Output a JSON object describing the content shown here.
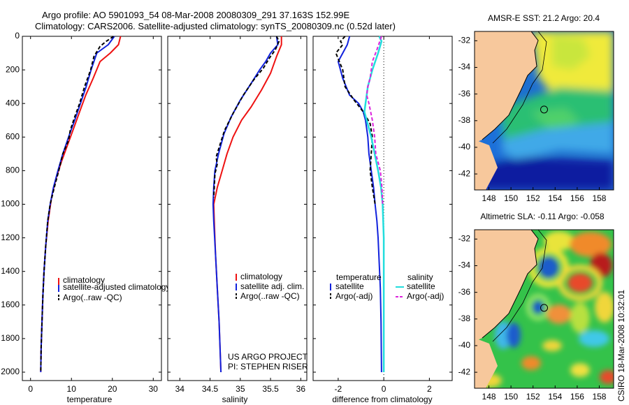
{
  "header": {
    "title_line1": "Argo profile: AO 5901093_54 08-Mar-2008 20080309_291 37.163S 152.99E",
    "title_line2": "Climatology: CARS2006. Satellite-adjusted climatology: synTS_20080309.nc (0.52d later)"
  },
  "credit": "CSIRO 18-Mar-2008 10:32:01",
  "project": {
    "line1": "US ARGO PROJECT",
    "line2": "PI: STEPHEN RISER"
  },
  "colors": {
    "climatology": "#ee1111",
    "satellite": "#1122dd",
    "argo": "#000000",
    "salinity_satellite": "#22dddd",
    "salinity_argo": "#dd22dd",
    "land": "#f7c89c"
  },
  "chart_data": [
    {
      "type": "line",
      "id": "temperature",
      "xlabel": "temperature",
      "ylabel": "",
      "xlim": [
        -2,
        32
      ],
      "ylim": [
        2050,
        0
      ],
      "xticks": [
        0,
        10,
        20,
        30
      ],
      "yticks": [
        0,
        200,
        400,
        600,
        800,
        1000,
        1200,
        1400,
        1600,
        1800,
        2000
      ],
      "legend": [
        "climatology",
        "satellite-adjusted climatology",
        "Argo(..raw -QC)"
      ],
      "series": [
        {
          "name": "climatology",
          "style": "climatology",
          "points": [
            [
              22,
              0
            ],
            [
              21.5,
              50
            ],
            [
              19.5,
              100
            ],
            [
              17,
              150
            ],
            [
              15.3,
              250
            ],
            [
              13.5,
              350
            ],
            [
              12,
              450
            ],
            [
              10.5,
              550
            ],
            [
              9,
              650
            ],
            [
              7.5,
              750
            ],
            [
              6.2,
              850
            ],
            [
              5.2,
              950
            ],
            [
              4.3,
              1100
            ],
            [
              3.7,
              1250
            ],
            [
              3.3,
              1400
            ],
            [
              3,
              1550
            ],
            [
              2.8,
              1700
            ],
            [
              2.6,
              1850
            ],
            [
              2.5,
              2000
            ]
          ]
        },
        {
          "name": "satellite-adjusted climatology",
          "style": "satellite",
          "points": [
            [
              20.5,
              0
            ],
            [
              19,
              50
            ],
            [
              16.2,
              100
            ],
            [
              14.8,
              200
            ],
            [
              13.6,
              300
            ],
            [
              12.2,
              400
            ],
            [
              10.8,
              500
            ],
            [
              9.3,
              600
            ],
            [
              7.9,
              700
            ],
            [
              6.7,
              800
            ],
            [
              5.6,
              900
            ],
            [
              4.8,
              1000
            ],
            [
              4.2,
              1100
            ],
            [
              3.7,
              1250
            ],
            [
              3.3,
              1400
            ],
            [
              3,
              1550
            ],
            [
              2.8,
              1700
            ],
            [
              2.6,
              1850
            ],
            [
              2.5,
              2000
            ]
          ]
        },
        {
          "name": "Argo(..raw -QC)",
          "style": "argo",
          "points": [
            [
              20.3,
              0
            ],
            [
              18.5,
              30
            ],
            [
              17,
              60
            ],
            [
              15.5,
              120
            ],
            [
              14.7,
              200
            ],
            [
              13.2,
              300
            ],
            [
              12,
              400
            ],
            [
              10.8,
              480
            ],
            [
              9.7,
              560
            ],
            [
              9.3,
              620
            ],
            [
              7.9,
              700
            ],
            [
              6.9,
              800
            ],
            [
              5.8,
              900
            ],
            [
              4.8,
              1000
            ],
            [
              4.2,
              1100
            ],
            [
              3.7,
              1250
            ],
            [
              3.3,
              1400
            ],
            [
              3,
              1550
            ],
            [
              2.8,
              1700
            ],
            [
              2.6,
              1850
            ],
            [
              2.5,
              2000
            ]
          ]
        }
      ]
    },
    {
      "type": "line",
      "id": "salinity",
      "xlabel": "salinity",
      "ylabel": "",
      "xlim": [
        33.8,
        36.1
      ],
      "ylim": [
        2050,
        0
      ],
      "xticks": [
        34,
        34.5,
        35,
        35.5,
        36
      ],
      "yticks": [
        0,
        200,
        400,
        600,
        800,
        1000,
        1200,
        1400,
        1600,
        1800,
        2000
      ],
      "legend": [
        "climatology",
        "satellite adj. clim.",
        "Argo(..raw -QC)"
      ],
      "series": [
        {
          "name": "climatology",
          "style": "climatology",
          "points": [
            [
              35.68,
              0
            ],
            [
              35.68,
              50
            ],
            [
              35.6,
              120
            ],
            [
              35.5,
              220
            ],
            [
              35.35,
              320
            ],
            [
              35.18,
              420
            ],
            [
              35.02,
              500
            ],
            [
              34.88,
              600
            ],
            [
              34.78,
              700
            ],
            [
              34.7,
              800
            ],
            [
              34.62,
              900
            ],
            [
              34.56,
              1000
            ],
            [
              34.57,
              1100
            ],
            [
              34.59,
              1300
            ],
            [
              34.62,
              1500
            ],
            [
              34.65,
              1700
            ],
            [
              34.68,
              2000
            ]
          ]
        },
        {
          "name": "satellite adj. clim.",
          "style": "satellite",
          "points": [
            [
              35.6,
              0
            ],
            [
              35.62,
              50
            ],
            [
              35.5,
              100
            ],
            [
              35.42,
              150
            ],
            [
              35.32,
              200
            ],
            [
              35.18,
              280
            ],
            [
              35,
              380
            ],
            [
              34.85,
              480
            ],
            [
              34.73,
              580
            ],
            [
              34.64,
              700
            ],
            [
              34.58,
              800
            ],
            [
              34.56,
              900
            ],
            [
              34.55,
              1000
            ],
            [
              34.56,
              1100
            ],
            [
              34.59,
              1300
            ],
            [
              34.62,
              1500
            ],
            [
              34.65,
              1700
            ],
            [
              34.68,
              2000
            ]
          ]
        },
        {
          "name": "Argo(..raw -QC)",
          "style": "argo",
          "points": [
            [
              35.6,
              0
            ],
            [
              35.64,
              30
            ],
            [
              35.58,
              80
            ],
            [
              35.48,
              130
            ],
            [
              35.38,
              190
            ],
            [
              35.22,
              260
            ],
            [
              35.05,
              350
            ],
            [
              34.88,
              460
            ],
            [
              34.74,
              560
            ],
            [
              34.66,
              650
            ],
            [
              34.6,
              720
            ],
            [
              34.62,
              760
            ],
            [
              34.58,
              820
            ],
            [
              34.57,
              900
            ],
            [
              34.56,
              960
            ]
          ]
        }
      ]
    },
    {
      "type": "line",
      "id": "difference",
      "xlabel": "difference from climatology",
      "ylabel": "",
      "xlim": [
        -3.1,
        3.0
      ],
      "ylim": [
        2050,
        0
      ],
      "xticks": [
        -2,
        0,
        2
      ],
      "yticks": [
        0,
        200,
        400,
        600,
        800,
        1000,
        1200,
        1400,
        1600,
        1800,
        2000
      ],
      "legend_left_title": "temperature",
      "legend_right_title": "salinity",
      "legend": [
        "satellite",
        "Argo(-adj)",
        "satellite",
        "Argo(-adj)"
      ],
      "series": [
        {
          "name": "temperature satellite",
          "style": "satellite",
          "points": [
            [
              -1.5,
              0
            ],
            [
              -1.6,
              50
            ],
            [
              -2.0,
              150
            ],
            [
              -1.8,
              250
            ],
            [
              -1.5,
              350
            ],
            [
              -1.1,
              400
            ],
            [
              -0.9,
              450
            ],
            [
              -0.8,
              500
            ],
            [
              -0.7,
              600
            ],
            [
              -0.65,
              700
            ],
            [
              -0.55,
              800
            ],
            [
              -0.45,
              900
            ],
            [
              -0.38,
              1000
            ],
            [
              -0.3,
              1100
            ],
            [
              -0.25,
              1200
            ],
            [
              -0.2,
              1350
            ],
            [
              -0.15,
              1500
            ],
            [
              -0.12,
              1700
            ],
            [
              -0.1,
              2000
            ]
          ]
        },
        {
          "name": "temperature Argo(-adj)",
          "style": "argo",
          "points": [
            [
              -1.7,
              0
            ],
            [
              -1.9,
              30
            ],
            [
              -1.8,
              50
            ],
            [
              -2.1,
              100
            ],
            [
              -1.8,
              200
            ],
            [
              -1.7,
              300
            ],
            [
              -1.3,
              380
            ],
            [
              -0.9,
              450
            ],
            [
              -0.6,
              520
            ],
            [
              -0.5,
              600
            ],
            [
              -0.55,
              700
            ],
            [
              -0.6,
              800
            ],
            [
              -0.5,
              900
            ],
            [
              -0.38,
              1000
            ]
          ]
        },
        {
          "name": "salinity satellite",
          "style": "salinity_satellite",
          "points": [
            [
              -0.2,
              0
            ],
            [
              -0.1,
              30
            ],
            [
              -0.25,
              100
            ],
            [
              -0.5,
              200
            ],
            [
              -0.7,
              300
            ],
            [
              -0.8,
              400
            ],
            [
              -0.85,
              450
            ],
            [
              -0.75,
              500
            ],
            [
              -0.55,
              600
            ],
            [
              -0.4,
              700
            ],
            [
              -0.25,
              800
            ],
            [
              -0.12,
              900
            ],
            [
              -0.05,
              1000
            ],
            [
              0,
              1200
            ],
            [
              0,
              1500
            ],
            [
              0,
              2000
            ]
          ]
        },
        {
          "name": "salinity Argo(-adj)",
          "style": "salinity_argo",
          "points": [
            [
              -0.1,
              0
            ],
            [
              -0.3,
              80
            ],
            [
              -0.5,
              150
            ],
            [
              -0.6,
              250
            ],
            [
              -0.7,
              300
            ],
            [
              -0.75,
              350
            ],
            [
              -0.65,
              400
            ],
            [
              -0.5,
              500
            ],
            [
              -0.4,
              600
            ],
            [
              -0.35,
              700
            ],
            [
              -0.15,
              800
            ],
            [
              -0.08,
              900
            ],
            [
              -0.05,
              1000
            ]
          ]
        }
      ]
    },
    {
      "type": "heatmap",
      "id": "sst-map",
      "title": "AMSR-E SST: 21.2  Argo: 20.4",
      "xlim": [
        146.7,
        159.3
      ],
      "ylim": [
        -43.2,
        -31.3
      ],
      "xticks": [
        148,
        150,
        152,
        154,
        156,
        158
      ],
      "yticks": [
        -32,
        -34,
        -36,
        -38,
        -40,
        -42
      ],
      "marker": [
        153.0,
        -37.163
      ]
    },
    {
      "type": "heatmap",
      "id": "sla-map",
      "title": "Altimetric SLA: -0.11  Argo: -0.058",
      "xlim": [
        146.7,
        159.3
      ],
      "ylim": [
        -43.2,
        -31.3
      ],
      "xticks": [
        148,
        150,
        152,
        154,
        156,
        158
      ],
      "yticks": [
        -32,
        -34,
        -36,
        -38,
        -40,
        -42
      ],
      "marker": [
        153.0,
        -37.163
      ]
    }
  ]
}
